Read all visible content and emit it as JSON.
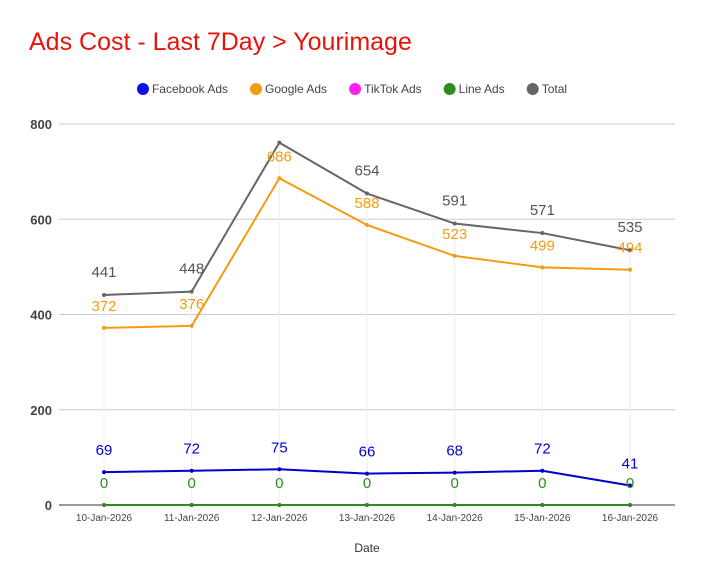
{
  "chart_data": {
    "type": "line",
    "title": "Ads Cost - Last 7Day > Yourimage",
    "xlabel": "Date",
    "ylabel": "",
    "ylim": [
      0,
      800
    ],
    "yticks": [
      0,
      200,
      400,
      600,
      800
    ],
    "grid": true,
    "legend_position": "top",
    "categories": [
      "10-Jan-2026",
      "11-Jan-2026",
      "12-Jan-2026",
      "13-Jan-2026",
      "14-Jan-2026",
      "15-Jan-2026",
      "16-Jan-2026"
    ],
    "series": [
      {
        "name": "Facebook Ads",
        "color": "#0000cc",
        "legend_color": "#1010ee",
        "values": [
          69,
          72,
          75,
          66,
          68,
          72,
          41
        ],
        "labels_shown": true
      },
      {
        "name": "Google Ads",
        "color": "#f39c12",
        "legend_color": "#f39c12",
        "values": [
          372,
          376,
          686,
          588,
          523,
          499,
          494
        ],
        "labels_shown": true
      },
      {
        "name": "TikTok Ads",
        "color": "#ff00ff",
        "legend_color": "#ff22ee",
        "values": [
          0,
          0,
          0,
          0,
          0,
          0,
          0
        ],
        "labels_shown": false
      },
      {
        "name": "Line Ads",
        "color": "#2e8b1e",
        "legend_color": "#2e8b1e",
        "values": [
          0,
          0,
          0,
          0,
          0,
          0,
          0
        ],
        "labels_shown": true
      },
      {
        "name": "Total",
        "color": "#666666",
        "legend_color": "#666666",
        "values": [
          441,
          448,
          761,
          654,
          591,
          571,
          535
        ],
        "labels": [
          "441",
          "448",
          "",
          "654",
          "591",
          "571",
          "535"
        ],
        "labels_shown": true
      }
    ]
  }
}
